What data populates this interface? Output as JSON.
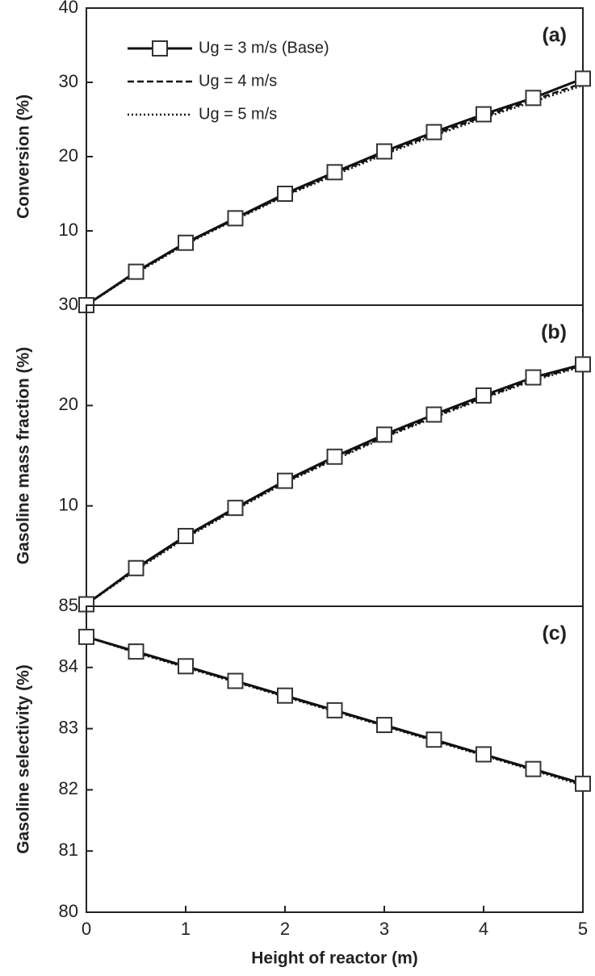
{
  "chart_data": [
    {
      "type": "line",
      "panel_label": "(a)",
      "ylabel": "Conversion (%)",
      "x": [
        0,
        0.5,
        1,
        1.5,
        2,
        2.5,
        3,
        3.5,
        4,
        4.5,
        5
      ],
      "series": [
        {
          "name": "Ug = 3 m/s (Base)",
          "color": "#111111",
          "style": "solid",
          "marker": "square",
          "values": [
            0,
            4.5,
            8.4,
            11.7,
            15.0,
            17.9,
            20.7,
            23.3,
            25.7,
            27.9,
            30.5
          ]
        },
        {
          "name": "Ug = 4 m/s",
          "color": "#111111",
          "style": "dashed",
          "values": [
            0,
            4.4,
            8.3,
            11.6,
            14.8,
            17.7,
            20.5,
            23.0,
            25.4,
            27.6,
            29.9
          ]
        },
        {
          "name": "Ug = 5 m/s",
          "color": "#111111",
          "style": "dotted",
          "values": [
            0,
            4.3,
            8.2,
            11.5,
            14.7,
            17.5,
            20.3,
            22.8,
            25.2,
            27.4,
            29.6
          ]
        }
      ],
      "xlim": [
        0,
        5
      ],
      "ylim": [
        0,
        40
      ],
      "yticks": [
        10,
        20,
        30,
        40
      ]
    },
    {
      "type": "line",
      "panel_label": "(b)",
      "ylabel": "Gasoline mass fraction (%)",
      "x": [
        0,
        0.5,
        1,
        1.5,
        2,
        2.5,
        3,
        3.5,
        4,
        4.5,
        5
      ],
      "series": [
        {
          "color": "#111111",
          "style": "solid",
          "marker": "square",
          "values": [
            0.2,
            3.8,
            7.0,
            9.8,
            12.5,
            14.9,
            17.1,
            19.1,
            21.0,
            22.8,
            24.1
          ]
        },
        {
          "color": "#111111",
          "style": "dashed",
          "values": [
            0.2,
            3.7,
            6.9,
            9.7,
            12.4,
            14.7,
            16.9,
            18.9,
            20.8,
            22.6,
            24.0
          ]
        },
        {
          "color": "#111111",
          "style": "dotted",
          "values": [
            0.2,
            3.6,
            6.8,
            9.6,
            12.3,
            14.6,
            16.8,
            18.8,
            20.7,
            22.5,
            23.9
          ]
        }
      ],
      "xlim": [
        0,
        5
      ],
      "ylim": [
        0,
        30
      ],
      "yticks": [
        10,
        20,
        30
      ]
    },
    {
      "type": "line",
      "panel_label": "(c)",
      "ylabel": "Gasoline selectivity (%)",
      "xlabel": "Height of reactor (m)",
      "x": [
        0,
        0.5,
        1,
        1.5,
        2,
        2.5,
        3,
        3.5,
        4,
        4.5,
        5
      ],
      "series": [
        {
          "color": "#111111",
          "style": "solid",
          "marker": "square",
          "values": [
            84.5,
            84.26,
            84.02,
            83.78,
            83.54,
            83.3,
            83.06,
            82.82,
            82.58,
            82.34,
            82.1
          ]
        },
        {
          "color": "#111111",
          "style": "dashed",
          "values": [
            84.5,
            84.25,
            84.01,
            83.77,
            83.53,
            83.29,
            83.05,
            82.81,
            82.57,
            82.33,
            82.09
          ]
        },
        {
          "color": "#111111",
          "style": "dotted",
          "values": [
            84.5,
            84.24,
            84.0,
            83.76,
            83.52,
            83.28,
            83.04,
            82.8,
            82.56,
            82.32,
            82.07
          ]
        }
      ],
      "xlim": [
        0,
        5
      ],
      "ylim": [
        80,
        85
      ],
      "yticks": [
        80,
        81,
        82,
        83,
        84,
        85
      ],
      "xticks": [
        0,
        1,
        2,
        3,
        4,
        5
      ]
    }
  ]
}
